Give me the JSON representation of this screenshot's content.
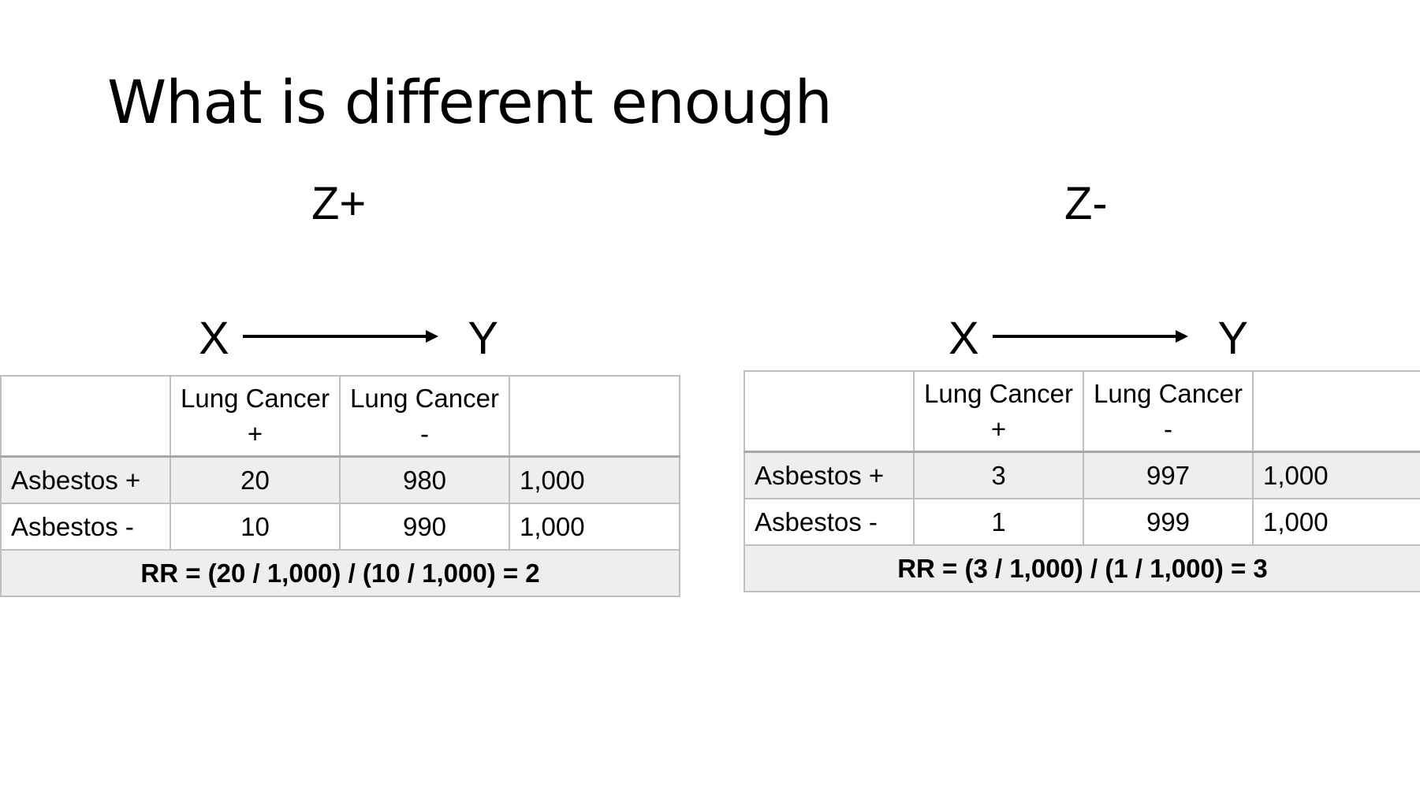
{
  "title": "What is different enough",
  "panels": [
    {
      "label": "Z+",
      "diagram": {
        "from": "X",
        "to": "Y"
      },
      "table": {
        "header": [
          "",
          "Lung Cancer\n+",
          "Lung Cancer\n-",
          ""
        ],
        "header_lines": {
          "c1": [
            "Lung Cancer",
            "+"
          ],
          "c2": [
            "Lung Cancer",
            "-"
          ]
        },
        "rows": [
          {
            "label": "Asbestos +",
            "pos": "20",
            "neg": "980",
            "total": "1,000"
          },
          {
            "label": "Asbestos -",
            "pos": "10",
            "neg": "990",
            "total": "1,000"
          }
        ],
        "rr": "RR = (20 / 1,000) / (10 / 1,000) = 2"
      }
    },
    {
      "label": "Z-",
      "diagram": {
        "from": "X",
        "to": "Y"
      },
      "table": {
        "header_lines": {
          "c1": [
            "Lung Cancer",
            "+"
          ],
          "c2": [
            "Lung Cancer",
            "-"
          ]
        },
        "rows": [
          {
            "label": "Asbestos +",
            "pos": "3",
            "neg": "997",
            "total": "1,000"
          },
          {
            "label": "Asbestos -",
            "pos": "1",
            "neg": "999",
            "total": "1,000"
          }
        ],
        "rr": "RR = (3 / 1,000) / (1 / 1,000) = 3"
      }
    }
  ],
  "colors": {
    "shade": "#eeeeee",
    "border": "#bfbfbf",
    "text": "#000000"
  }
}
